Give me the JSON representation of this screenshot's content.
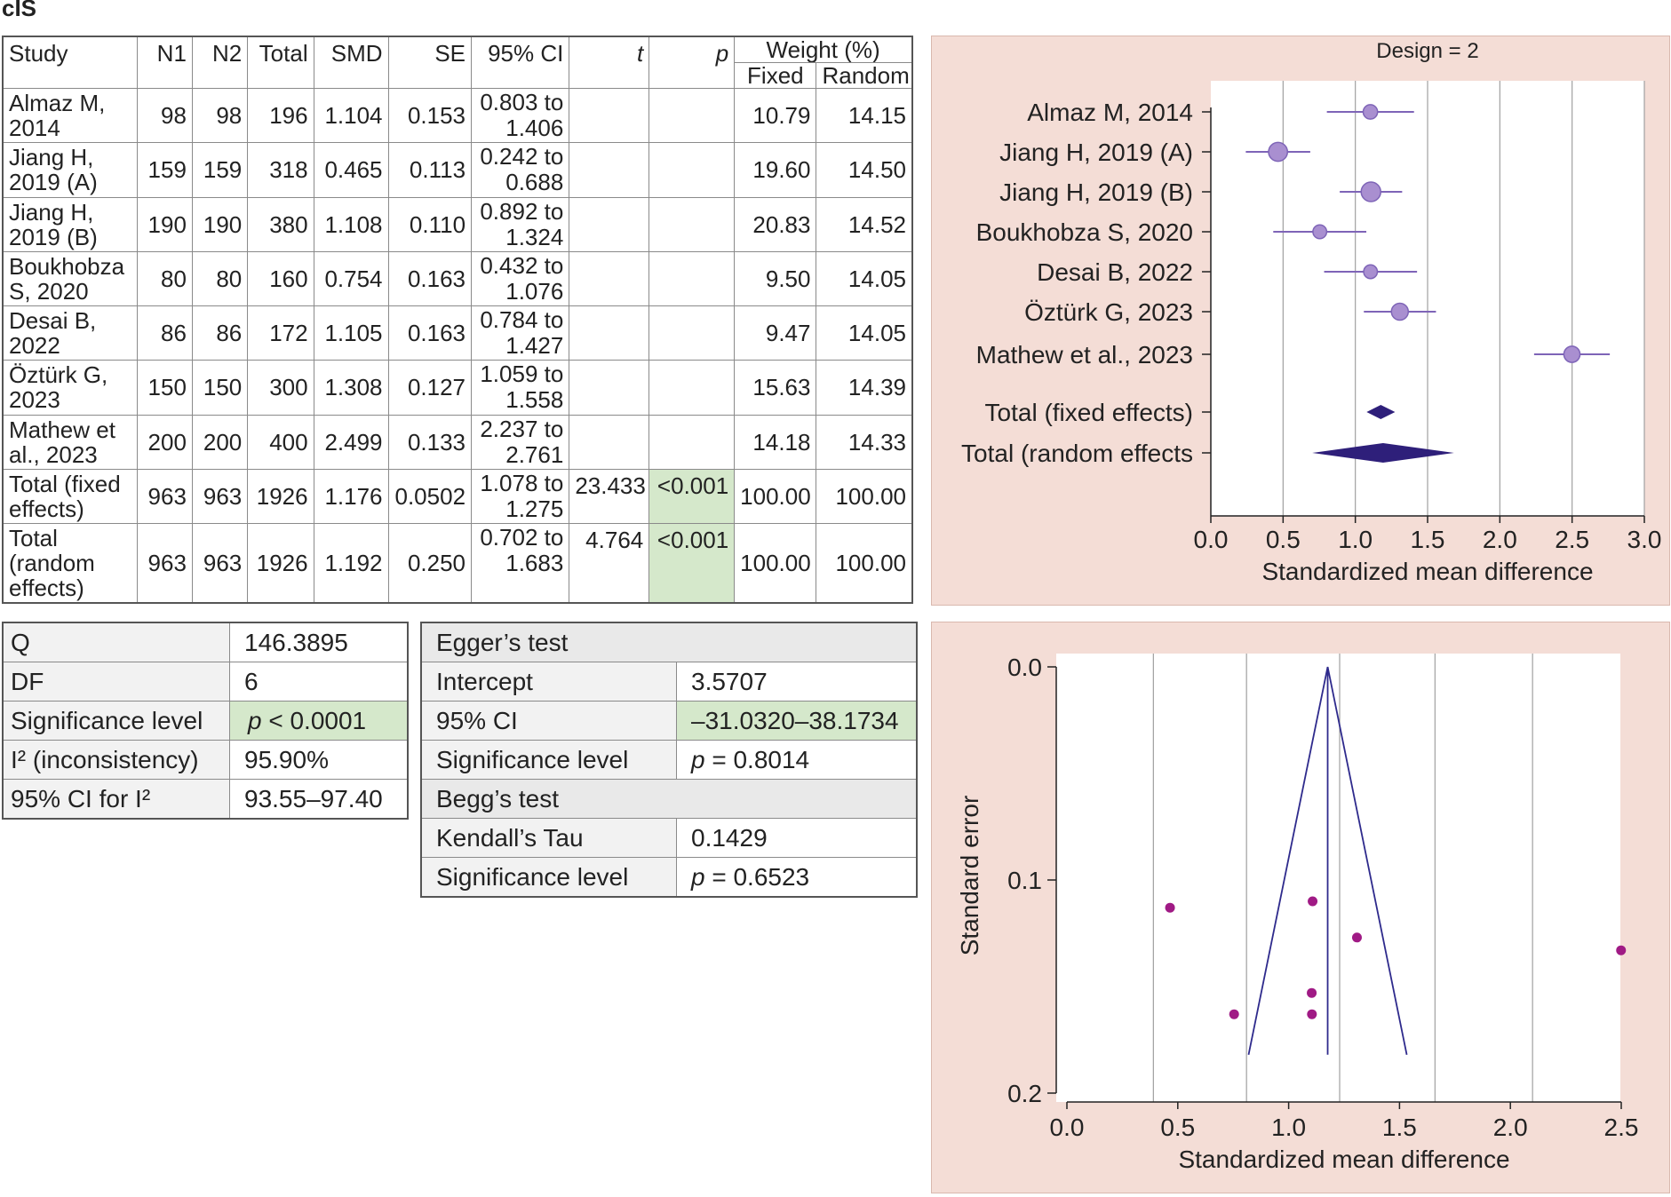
{
  "page_title": "cIS",
  "study_table": {
    "headers": {
      "study": "Study",
      "n1": "N1",
      "n2": "N2",
      "total": "Total",
      "smd": "SMD",
      "se": "SE",
      "ci": "95% CI",
      "t": "t",
      "p": "p",
      "weight": "Weight (%)",
      "fixed": "Fixed",
      "random": "Random"
    },
    "rows": [
      {
        "study_l1": "Almaz M,",
        "study_l2": "2014",
        "n1": "98",
        "n2": "98",
        "total": "196",
        "smd": "1.104",
        "se": "0.153",
        "ci_l1": "0.803 to",
        "ci_l2": "1.406",
        "t": "",
        "p": "",
        "fixed": "10.79",
        "random": "14.15"
      },
      {
        "study_l1": "Jiang H,",
        "study_l2": "2019 (A)",
        "n1": "159",
        "n2": "159",
        "total": "318",
        "smd": "0.465",
        "se": "0.113",
        "ci_l1": "0.242 to",
        "ci_l2": "0.688",
        "t": "",
        "p": "",
        "fixed": "19.60",
        "random": "14.50"
      },
      {
        "study_l1": "Jiang H,",
        "study_l2": "2019 (B)",
        "n1": "190",
        "n2": "190",
        "total": "380",
        "smd": "1.108",
        "se": "0.110",
        "ci_l1": "0.892 to",
        "ci_l2": "1.324",
        "t": "",
        "p": "",
        "fixed": "20.83",
        "random": "14.52"
      },
      {
        "study_l1": "Boukhobza",
        "study_l2": "S, 2020",
        "n1": "80",
        "n2": "80",
        "total": "160",
        "smd": "0.754",
        "se": "0.163",
        "ci_l1": "0.432 to",
        "ci_l2": "1.076",
        "t": "",
        "p": "",
        "fixed": "9.50",
        "random": "14.05"
      },
      {
        "study_l1": "Desai B,",
        "study_l2": "2022",
        "n1": "86",
        "n2": "86",
        "total": "172",
        "smd": "1.105",
        "se": "0.163",
        "ci_l1": "0.784 to",
        "ci_l2": "1.427",
        "t": "",
        "p": "",
        "fixed": "9.47",
        "random": "14.05"
      },
      {
        "study_l1": "Öztürk G,",
        "study_l2": "2023",
        "n1": "150",
        "n2": "150",
        "total": "300",
        "smd": "1.308",
        "se": "0.127",
        "ci_l1": "1.059 to",
        "ci_l2": "1.558",
        "t": "",
        "p": "",
        "fixed": "15.63",
        "random": "14.39"
      },
      {
        "study_l1": "Mathew et",
        "study_l2": "al., 2023",
        "n1": "200",
        "n2": "200",
        "total": "400",
        "smd": "2.499",
        "se": "0.133",
        "ci_l1": "2.237 to",
        "ci_l2": "2.761",
        "t": "",
        "p": "",
        "fixed": "14.18",
        "random": "14.33"
      }
    ],
    "total_fixed": {
      "study_l1": "Total (fixed",
      "study_l2": "effects)",
      "n1": "963",
      "n2": "963",
      "total": "1926",
      "smd": "1.176",
      "se": "0.0502",
      "ci_l1": "1.078 to",
      "ci_l2": "1.275",
      "t": "23.433",
      "p": "<0.001",
      "fixed": "100.00",
      "random": "100.00"
    },
    "total_random": {
      "study_l1": "Total",
      "study_l2": "(random",
      "study_l3": "effects)",
      "n1": "963",
      "n2": "963",
      "total": "1926",
      "smd": "1.192",
      "se": "0.250",
      "ci_l1": "0.702 to",
      "ci_l2": "1.683",
      "t": "4.764",
      "p": "<0.001",
      "fixed": "100.00",
      "random": "100.00"
    }
  },
  "heterogeneity": {
    "q_label": "Q",
    "q_value": "146.3895",
    "df_label": "DF",
    "df_value": "6",
    "sig_label": "Significance level",
    "sig_p": "p",
    "sig_value": " < 0.0001",
    "i2_label": "I² (inconsistency)",
    "i2_value": "95.90%",
    "ci_label": "95% CI for I²",
    "ci_value": "93.55–97.40"
  },
  "publication_bias": {
    "egger_title": "Egger’s test",
    "intercept_label": "Intercept",
    "intercept_value": "3.5707",
    "ci_label": "95% CI",
    "ci_value": "–31.0320–38.1734",
    "egger_sig_label": "Significance level",
    "egger_sig_p": "p",
    "egger_sig_value": " = 0.8014",
    "begg_title": "Begg’s test",
    "tau_label": "Kendall’s Tau",
    "tau_value": "0.1429",
    "begg_sig_label": "Significance level",
    "begg_sig_p": "p",
    "begg_sig_value": " = 0.6523"
  },
  "colors": {
    "panel_bg": "#f4ddd6",
    "marker": "#a98fd0",
    "marker_stroke": "#7e64b7",
    "diamond": "#2e1f7a",
    "funnel_dot": "#a01a85",
    "funnel_line": "#2e2a8c",
    "highlight": "#d5e8cb"
  },
  "chart_data": [
    {
      "type": "scatter",
      "subtype": "forest",
      "title": "Design = 2",
      "xlabel": "Standardized mean difference",
      "xlim": [
        0,
        3
      ],
      "xticks": [
        "0.0",
        "0.5",
        "1.0",
        "1.5",
        "2.0",
        "2.5",
        "3.0"
      ],
      "xtick_values": [
        0,
        0.5,
        1,
        1.5,
        2,
        2.5,
        3
      ],
      "studies": [
        {
          "label": "Almaz M, 2014",
          "smd": 1.104,
          "lo": 0.803,
          "hi": 1.406,
          "weight": 10.79
        },
        {
          "label": "Jiang H, 2019 (A)",
          "smd": 0.465,
          "lo": 0.242,
          "hi": 0.688,
          "weight": 19.6
        },
        {
          "label": "Jiang H, 2019 (B)",
          "smd": 1.108,
          "lo": 0.892,
          "hi": 1.324,
          "weight": 20.83
        },
        {
          "label": "Boukhobza S, 2020",
          "smd": 0.754,
          "lo": 0.432,
          "hi": 1.076,
          "weight": 9.5
        },
        {
          "label": "Desai B, 2022",
          "smd": 1.105,
          "lo": 0.784,
          "hi": 1.427,
          "weight": 9.47
        },
        {
          "label": "Öztürk G, 2023",
          "smd": 1.308,
          "lo": 1.059,
          "hi": 1.558,
          "weight": 15.63
        },
        {
          "label": "Mathew et al., 2023",
          "smd": 2.499,
          "lo": 2.237,
          "hi": 2.761,
          "weight": 14.18
        }
      ],
      "totals": [
        {
          "label": "Total (fixed effects)",
          "smd": 1.176,
          "lo": 1.078,
          "hi": 1.275
        },
        {
          "label": "Total (random effects",
          "smd": 1.192,
          "lo": 0.702,
          "hi": 1.683
        }
      ]
    },
    {
      "type": "scatter",
      "subtype": "funnel",
      "xlabel": "Standardized mean difference",
      "ylabel": "Standard error",
      "xlim": [
        0,
        2.5
      ],
      "ylim": [
        0,
        0.2
      ],
      "xticks": [
        "0.0",
        "0.5",
        "1.0",
        "1.5",
        "2.0",
        "2.5"
      ],
      "xtick_values": [
        0,
        0.5,
        1,
        1.5,
        2,
        2.5
      ],
      "yticks": [
        "0.0",
        "0.1",
        "0.2"
      ],
      "ytick_values": [
        0,
        0.1,
        0.2
      ],
      "grid_x": [
        0.39,
        0.81,
        1.23,
        1.66,
        2.1
      ],
      "center": 1.176,
      "points": [
        {
          "x": 1.104,
          "y": 0.153
        },
        {
          "x": 0.465,
          "y": 0.113
        },
        {
          "x": 1.108,
          "y": 0.11
        },
        {
          "x": 0.754,
          "y": 0.163
        },
        {
          "x": 1.105,
          "y": 0.163
        },
        {
          "x": 1.308,
          "y": 0.127
        },
        {
          "x": 2.499,
          "y": 0.133
        }
      ]
    }
  ]
}
